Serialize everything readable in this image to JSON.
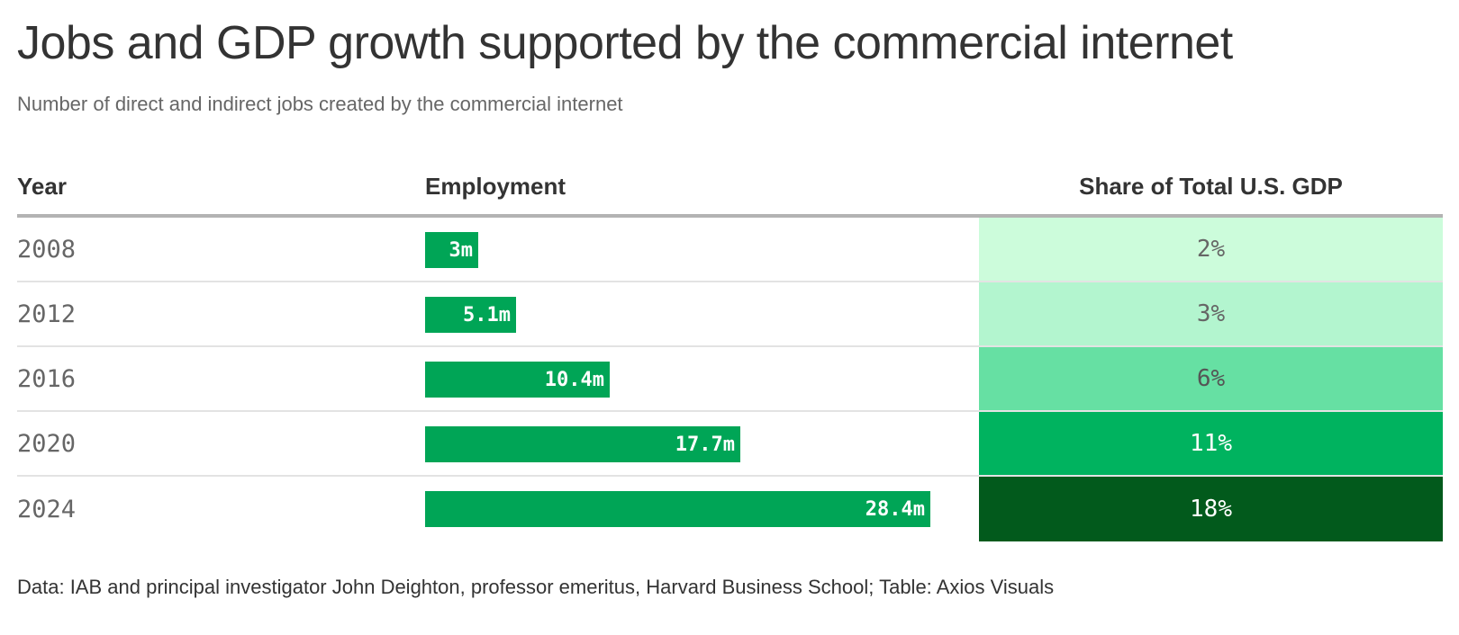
{
  "title": "Jobs and GDP growth supported by the commercial internet",
  "subtitle": "Number of direct and indirect jobs created by the commercial internet",
  "footer": "Data: IAB and principal investigator John Deighton, professor emeritus, Harvard Business School; Table: Axios Visuals",
  "chart_data": {
    "type": "table",
    "columns": [
      "Year",
      "Employment",
      "Share of Total U.S. GDP"
    ],
    "rows": [
      {
        "year": "2008",
        "employment": 3.0,
        "employment_label": "3m",
        "gdp_share": 2,
        "gdp_label": "2%",
        "gdp_color": "#ccfcdb",
        "gdp_text_color": "#666666"
      },
      {
        "year": "2012",
        "employment": 5.1,
        "employment_label": "5.1m",
        "gdp_share": 3,
        "gdp_label": "3%",
        "gdp_color": "#b3f5cf",
        "gdp_text_color": "#666666"
      },
      {
        "year": "2016",
        "employment": 10.4,
        "employment_label": "10.4m",
        "gdp_share": 6,
        "gdp_label": "6%",
        "gdp_color": "#66e0a3",
        "gdp_text_color": "#555555"
      },
      {
        "year": "2020",
        "employment": 17.7,
        "employment_label": "17.7m",
        "gdp_share": 11,
        "gdp_label": "11%",
        "gdp_color": "#00b35f",
        "gdp_text_color": "#ffffff"
      },
      {
        "year": "2024",
        "employment": 28.4,
        "employment_label": "28.4m",
        "gdp_share": 18,
        "gdp_label": "18%",
        "gdp_color": "#025a1c",
        "gdp_text_color": "#ffffff"
      }
    ],
    "bar_color": "#00a556",
    "employment_max": 28.4
  }
}
